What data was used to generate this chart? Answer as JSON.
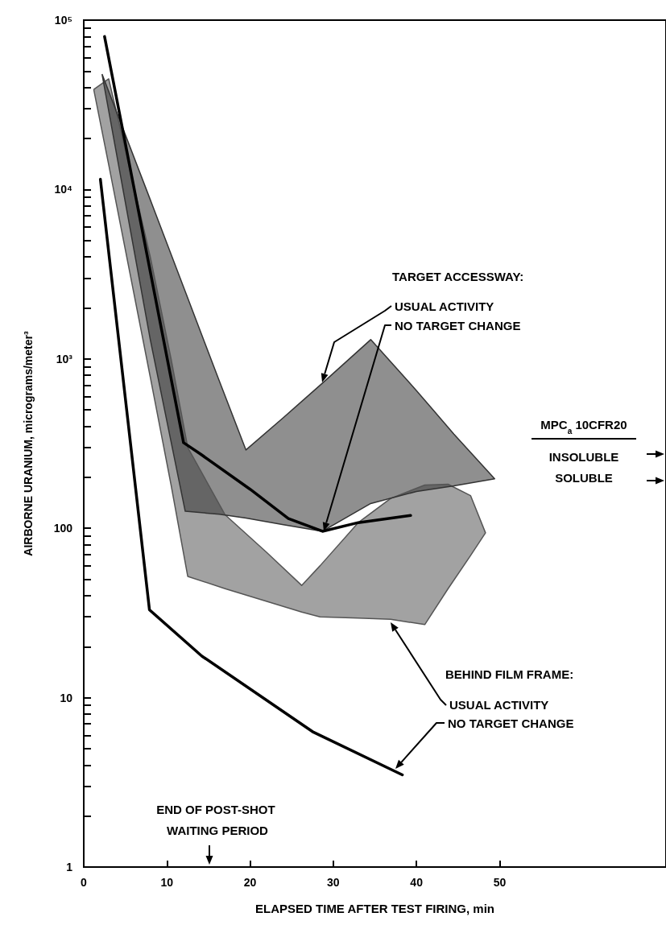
{
  "chart_data": {
    "type": "line",
    "xlabel": "ELAPSED TIME AFTER TEST FIRING, min",
    "ylabel": "AIRBORNE URANIUM, micrograms/meter³",
    "log": "y",
    "marker": "none",
    "xlim": [
      0,
      70
    ],
    "xticks": [
      0,
      10,
      20,
      30,
      40,
      50
    ],
    "ylim": [
      1,
      100000
    ],
    "yticks": [
      1,
      {
        "value": 2,
        "label": null
      },
      {
        "value": 3,
        "label": null
      },
      {
        "value": 4,
        "label": null
      },
      {
        "value": 5,
        "label": null
      },
      {
        "value": 6,
        "label": null
      },
      {
        "value": 7,
        "label": null
      },
      {
        "value": 8,
        "label": null
      },
      {
        "value": 9,
        "label": null
      },
      10,
      {
        "value": 20,
        "label": null
      },
      {
        "value": 30,
        "label": null
      },
      {
        "value": 40,
        "label": null
      },
      {
        "value": 50,
        "label": null
      },
      {
        "value": 60,
        "label": null
      },
      {
        "value": 70,
        "label": null
      },
      {
        "value": 80,
        "label": null
      },
      {
        "value": 90,
        "label": null
      },
      100,
      {
        "value": 200,
        "label": null
      },
      {
        "value": 300,
        "label": null
      },
      {
        "value": 400,
        "label": null
      },
      {
        "value": 500,
        "label": null
      },
      {
        "value": 600,
        "label": null
      },
      {
        "value": 700,
        "label": null
      },
      {
        "value": 800,
        "label": null
      },
      {
        "value": 900,
        "label": null
      },
      {
        "value": 1000,
        "label": "10³"
      },
      {
        "value": 2000,
        "label": null
      },
      {
        "value": 3000,
        "label": null
      },
      {
        "value": 4000,
        "label": null
      },
      {
        "value": 5000,
        "label": null
      },
      {
        "value": 6000,
        "label": null
      },
      {
        "value": 7000,
        "label": null
      },
      {
        "value": 8000,
        "label": null
      },
      {
        "value": 9000,
        "label": null
      },
      {
        "value": 10000,
        "label": "10⁴"
      },
      {
        "value": 20000,
        "label": null
      },
      {
        "value": 30000,
        "label": null
      },
      {
        "value": 40000,
        "label": null
      },
      {
        "value": 50000,
        "label": null
      },
      {
        "value": 60000,
        "label": null
      },
      {
        "value": 70000,
        "label": null
      },
      {
        "value": 80000,
        "label": null
      },
      {
        "value": 90000,
        "label": null
      },
      {
        "value": 100000,
        "label": "10⁵"
      }
    ],
    "series": [
      {
        "type": "area",
        "color": "#555555",
        "x": [
          1.2,
          3,
          8,
          10.5,
          12.5,
          17,
          22,
          26.2,
          28.4,
          33,
          36.9,
          41,
          43.8,
          46.5,
          48.3,
          46.5,
          43.8,
          41,
          36.9,
          33,
          28.4,
          26.2,
          22,
          17,
          12.5,
          10.5,
          8,
          3,
          1.2
        ],
        "values": [
          39000,
          45000,
          4000,
          1000,
          300,
          120,
          72,
          46,
          60,
          108,
          150,
          180,
          182,
          156,
          94,
          69,
          44,
          27,
          29,
          29.5,
          30,
          32,
          37,
          44,
          52,
          180,
          780,
          14000,
          39000
        ]
      },
      {
        "type": "area",
        "color": "#333333",
        "x": [
          2.2,
          8,
          12.2,
          16.3,
          19.5,
          24,
          28.7,
          34.5,
          40,
          44.5,
          49.4,
          44.5,
          40,
          34.5,
          28.7,
          24,
          19.5,
          16.3,
          12.2,
          8,
          2.2
        ],
        "values": [
          48000,
          8700,
          2500,
          740,
          290,
          450,
          720,
          1300,
          650,
          360,
          196,
          178,
          165,
          140,
          96,
          105,
          115,
          121,
          126,
          1300,
          48000
        ]
      },
      {
        "color": "#000000",
        "x": [
          2.5,
          12,
          14,
          20,
          24.6,
          28.7,
          33,
          39.3
        ],
        "values": [
          80000,
          320,
          275,
          170,
          114,
          96,
          108,
          119
        ]
      },
      {
        "color": "#000000",
        "x": [
          2,
          7.9,
          14.2,
          27.5,
          38.3
        ],
        "values": [
          11500,
          33,
          17.6,
          6.3,
          3.5
        ]
      }
    ],
    "annotations": [
      "TARGET ACCESSWAY:",
      "USUAL ACTIVITY",
      "NO TARGET CHANGE",
      "BEHIND FILM FRAME:",
      "USUAL ACTIVITY",
      "NO TARGET CHANGE",
      "END OF POST-SHOT WAITING PERIOD",
      "MPC$_{a}$ 10CFR20",
      "INSOLUBLE",
      "SOLUBLE"
    ]
  }
}
